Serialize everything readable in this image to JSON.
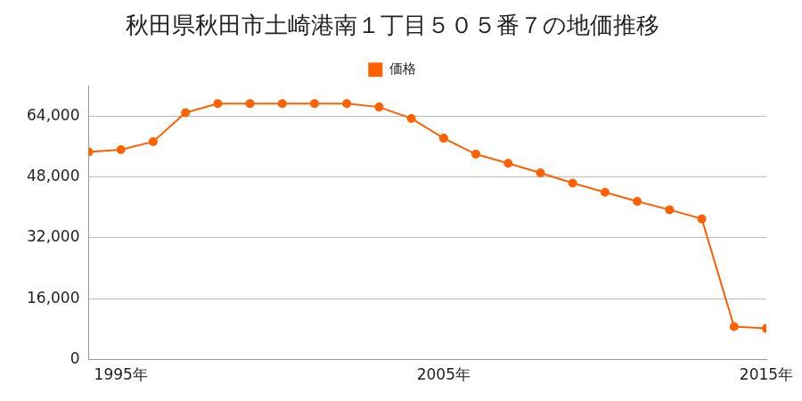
{
  "chart_data": {
    "type": "line",
    "title": "秋田県秋田市土崎港南１丁目５０５番７の地価推移",
    "categories": [
      null,
      "1995年",
      null,
      null,
      null,
      null,
      null,
      null,
      null,
      null,
      null,
      "2005年",
      null,
      null,
      null,
      null,
      null,
      null,
      null,
      null,
      null,
      "2015年"
    ],
    "series": [
      {
        "name": "価格",
        "color": "#ff6100",
        "marker": "circle",
        "values": [
          54600,
          55200,
          57300,
          64900,
          67300,
          67300,
          67300,
          67300,
          67300,
          66400,
          63400,
          58200,
          54000,
          51600,
          49100,
          46400,
          44000,
          41600,
          39400,
          37000,
          8700,
          8200
        ]
      }
    ],
    "ylim": [
      0,
      72000
    ],
    "yticks": [
      0,
      {
        "value": 16000,
        "label": "16,000"
      },
      {
        "value": 32000,
        "label": "32,000"
      },
      {
        "value": 48000,
        "label": "48,000"
      },
      {
        "value": 64000,
        "label": "64,000"
      }
    ],
    "grid": "y",
    "legend": "top"
  }
}
